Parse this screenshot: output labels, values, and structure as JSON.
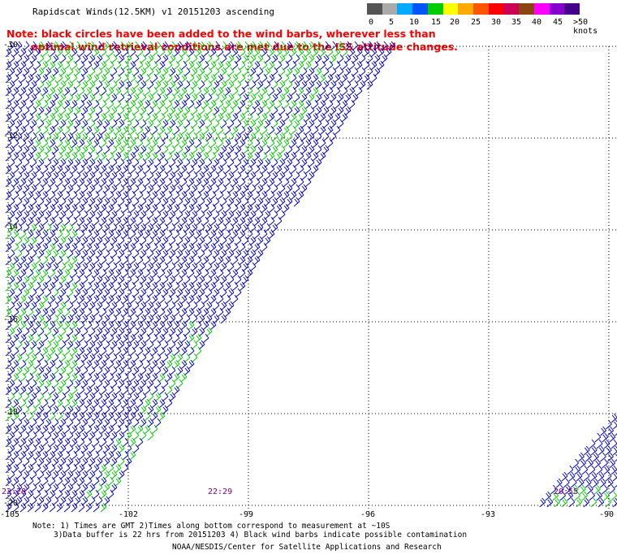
{
  "header": {
    "title": "Rapidscat Winds(12.5KM) v1 20151203 ascending",
    "note_line1": "Note: black circles have been added to the wind barbs, wherever less than",
    "note_line2": "optimal wind retrieval conditions are met due to the ISS attitude changes."
  },
  "legend": {
    "labels": [
      "0",
      "5",
      "10",
      "15",
      "20",
      "25",
      "30",
      "35",
      "40",
      "45",
      ">50 knots"
    ],
    "colors": [
      "#555555",
      "#aaaaaa",
      "#00aaff",
      "#0055ff",
      "#00cc00",
      "#ffff00",
      "#ffaa00",
      "#ff5500",
      "#ff0000",
      "#cc0055",
      "#8b4513",
      "#ff00ff",
      "#8800cc",
      "#440088"
    ]
  },
  "axes": {
    "lon_labels": [
      "-105",
      "-102",
      "-99",
      "-96",
      "-93",
      "-90"
    ],
    "lat_labels": [
      "-10",
      "-12",
      "-14",
      "-16",
      "-18",
      "-20"
    ],
    "lon_values": [
      -105,
      -102,
      -99,
      -96,
      -93,
      -90
    ],
    "lat_values": [
      -10,
      -12,
      -14,
      -16,
      -18,
      -20
    ]
  },
  "times": {
    "t1": "22:28",
    "t2": "22:29",
    "t3": "20:55"
  },
  "footer": {
    "line1": "Note: 1) Times are GMT 2)Times along bottom correspond to measurement at ~10S",
    "line2": "3)Data buffer is 22 hrs from 20151203 4) Black wind barbs indicate possible contamination",
    "line3": "NOAA/NESDIS/Center for Satellite Applications and Research"
  },
  "colors": {
    "barb_blue": "#0000cc",
    "barb_green": "#00cc00",
    "grid": "#000000",
    "note_red": "#ff0000",
    "time_purple": "#800080"
  }
}
